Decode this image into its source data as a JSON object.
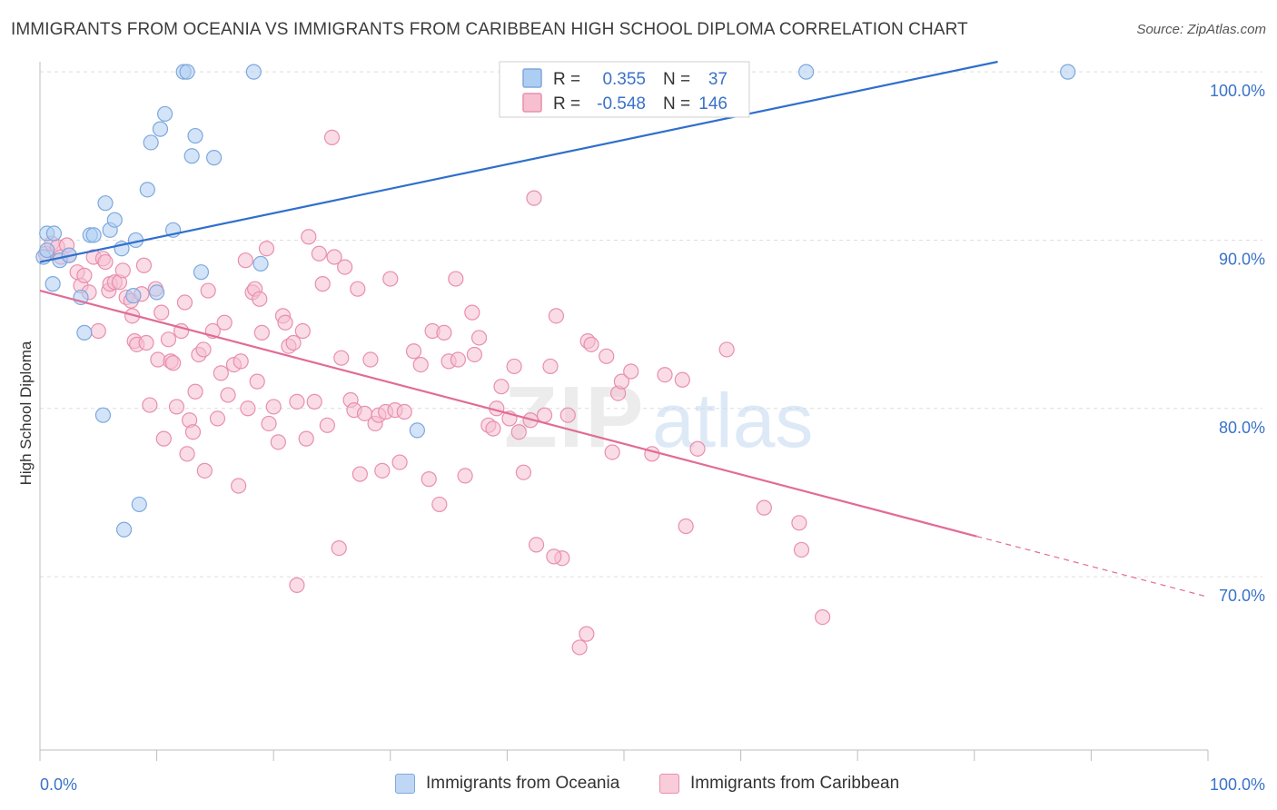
{
  "header": {
    "title": "IMMIGRANTS FROM OCEANIA VS IMMIGRANTS FROM CARIBBEAN HIGH SCHOOL DIPLOMA CORRELATION CHART",
    "source": "Source: ZipAtlas.com"
  },
  "watermark": {
    "part1": "ZIP",
    "part2": "atlas"
  },
  "colors": {
    "oceania_fill": "#aecdf3",
    "oceania_stroke": "#7ea8dd",
    "oceania_line": "#2f6fcc",
    "caribbean_fill": "#f6c0d1",
    "caribbean_stroke": "#e98fac",
    "caribbean_line": "#e26b97",
    "value_text": "#3a72c9",
    "grid": "#dedede"
  },
  "legend": {
    "rows": [
      {
        "r_label": "R =",
        "r_value": "0.355",
        "n_label": "N =",
        "n_value": "37"
      },
      {
        "r_label": "R =",
        "r_value": "-0.548",
        "n_label": "N =",
        "n_value": "146"
      }
    ]
  },
  "bottom_legend": {
    "oceania_label": "Immigrants from Oceania",
    "caribbean_label": "Immigrants from Caribbean"
  },
  "chart_data": {
    "type": "scatter",
    "title": "IMMIGRANTS FROM OCEANIA VS IMMIGRANTS FROM CARIBBEAN HIGH SCHOOL DIPLOMA CORRELATION CHART",
    "ylabel": "High School Diploma",
    "xlabel": "",
    "x_tick_labels": [
      "0.0%",
      "100.0%"
    ],
    "y_tick_labels": [
      "70.0%",
      "80.0%",
      "90.0%",
      "100.0%"
    ],
    "y_ticks": [
      70,
      80,
      90,
      100
    ],
    "xlim": [
      0,
      100
    ],
    "ylim": [
      59.7,
      100.6
    ],
    "grid": true,
    "legend_placement": "top-center",
    "series": [
      {
        "name": "Immigrants from Oceania",
        "r": 0.355,
        "n": 37,
        "trend": {
          "x": [
            0,
            82.0
          ],
          "y": [
            88.7,
            100.6
          ]
        },
        "points": [
          [
            0.3,
            89.0
          ],
          [
            0.6,
            90.4
          ],
          [
            1.1,
            87.4
          ],
          [
            1.2,
            90.4
          ],
          [
            1.7,
            88.8
          ],
          [
            2.5,
            89.1
          ],
          [
            3.5,
            86.6
          ],
          [
            3.8,
            84.5
          ],
          [
            4.3,
            90.3
          ],
          [
            4.6,
            90.3
          ],
          [
            5.4,
            79.6
          ],
          [
            5.6,
            92.2
          ],
          [
            6.0,
            90.6
          ],
          [
            6.4,
            91.2
          ],
          [
            7.0,
            89.5
          ],
          [
            7.2,
            72.8
          ],
          [
            8.0,
            86.7
          ],
          [
            8.2,
            90.0
          ],
          [
            8.5,
            74.3
          ],
          [
            9.2,
            93.0
          ],
          [
            9.5,
            95.8
          ],
          [
            10.0,
            86.9
          ],
          [
            10.3,
            96.6
          ],
          [
            10.7,
            97.5
          ],
          [
            11.4,
            90.6
          ],
          [
            12.3,
            100.0
          ],
          [
            12.6,
            100.0
          ],
          [
            13.0,
            95.0
          ],
          [
            13.3,
            96.2
          ],
          [
            13.8,
            88.1
          ],
          [
            14.9,
            94.9
          ],
          [
            18.3,
            100.0
          ],
          [
            18.9,
            88.6
          ],
          [
            32.3,
            78.7
          ],
          [
            65.6,
            100.0
          ],
          [
            88.0,
            100.0
          ],
          [
            0.6,
            89.4
          ]
        ]
      },
      {
        "name": "Immigrants from Caribbean",
        "r": -0.548,
        "n": 146,
        "trend": {
          "x": [
            0,
            80.2
          ],
          "y": [
            87.0,
            72.4
          ]
        },
        "trend_dashed": {
          "x": [
            80.2,
            100
          ],
          "y": [
            72.4,
            68.8
          ]
        },
        "points": [
          [
            0.5,
            89.2
          ],
          [
            1.0,
            89.8
          ],
          [
            1.5,
            89.6
          ],
          [
            1.8,
            89.0
          ],
          [
            2.3,
            89.7
          ],
          [
            2.5,
            89.1
          ],
          [
            3.2,
            88.1
          ],
          [
            3.5,
            87.3
          ],
          [
            3.8,
            87.9
          ],
          [
            4.2,
            86.9
          ],
          [
            4.6,
            89.0
          ],
          [
            5.0,
            84.6
          ],
          [
            5.4,
            88.9
          ],
          [
            5.6,
            88.7
          ],
          [
            5.9,
            87.0
          ],
          [
            6.0,
            87.4
          ],
          [
            6.4,
            87.5
          ],
          [
            6.8,
            87.5
          ],
          [
            7.1,
            88.2
          ],
          [
            7.4,
            86.6
          ],
          [
            7.8,
            86.4
          ],
          [
            7.9,
            85.5
          ],
          [
            8.1,
            84.0
          ],
          [
            8.3,
            83.8
          ],
          [
            8.7,
            86.8
          ],
          [
            8.9,
            88.5
          ],
          [
            9.1,
            83.9
          ],
          [
            9.4,
            80.2
          ],
          [
            9.9,
            87.1
          ],
          [
            10.1,
            82.9
          ],
          [
            10.4,
            85.7
          ],
          [
            10.6,
            78.2
          ],
          [
            11.0,
            84.1
          ],
          [
            11.2,
            82.8
          ],
          [
            11.4,
            82.7
          ],
          [
            11.7,
            80.1
          ],
          [
            12.1,
            84.6
          ],
          [
            12.4,
            86.3
          ],
          [
            12.6,
            77.3
          ],
          [
            12.8,
            79.3
          ],
          [
            13.1,
            78.6
          ],
          [
            13.3,
            81.0
          ],
          [
            13.6,
            83.2
          ],
          [
            14.0,
            83.5
          ],
          [
            14.1,
            76.3
          ],
          [
            14.4,
            87.0
          ],
          [
            14.8,
            84.6
          ],
          [
            15.2,
            79.4
          ],
          [
            15.5,
            82.1
          ],
          [
            15.8,
            85.1
          ],
          [
            16.1,
            80.8
          ],
          [
            16.6,
            82.6
          ],
          [
            17.0,
            75.4
          ],
          [
            17.2,
            82.8
          ],
          [
            17.6,
            88.8
          ],
          [
            17.8,
            80.0
          ],
          [
            18.2,
            86.9
          ],
          [
            18.4,
            87.1
          ],
          [
            18.6,
            81.6
          ],
          [
            18.8,
            86.5
          ],
          [
            19.0,
            84.5
          ],
          [
            19.4,
            89.5
          ],
          [
            19.6,
            79.1
          ],
          [
            20.0,
            80.1
          ],
          [
            20.4,
            78.0
          ],
          [
            20.8,
            85.5
          ],
          [
            21.0,
            85.1
          ],
          [
            21.3,
            83.7
          ],
          [
            21.7,
            83.9
          ],
          [
            22.0,
            80.4
          ],
          [
            22.5,
            84.6
          ],
          [
            22.8,
            78.2
          ],
          [
            23.0,
            90.2
          ],
          [
            23.5,
            80.4
          ],
          [
            23.9,
            89.2
          ],
          [
            24.2,
            87.4
          ],
          [
            24.6,
            79.0
          ],
          [
            25.2,
            89.0
          ],
          [
            25.6,
            71.7
          ],
          [
            25.8,
            83.0
          ],
          [
            26.1,
            88.4
          ],
          [
            26.6,
            80.5
          ],
          [
            26.9,
            79.9
          ],
          [
            27.2,
            87.1
          ],
          [
            27.4,
            76.1
          ],
          [
            27.8,
            79.7
          ],
          [
            28.3,
            82.9
          ],
          [
            28.7,
            79.1
          ],
          [
            29.0,
            79.6
          ],
          [
            29.3,
            76.3
          ],
          [
            29.6,
            79.8
          ],
          [
            30.0,
            87.7
          ],
          [
            30.4,
            79.9
          ],
          [
            30.8,
            76.8
          ],
          [
            31.2,
            79.8
          ],
          [
            32.0,
            83.4
          ],
          [
            32.6,
            82.6
          ],
          [
            33.3,
            75.8
          ],
          [
            33.6,
            84.6
          ],
          [
            34.2,
            74.3
          ],
          [
            34.6,
            84.5
          ],
          [
            35.0,
            82.8
          ],
          [
            35.6,
            87.7
          ],
          [
            35.8,
            82.9
          ],
          [
            36.4,
            76.0
          ],
          [
            37.0,
            85.7
          ],
          [
            37.2,
            83.2
          ],
          [
            37.6,
            84.2
          ],
          [
            38.4,
            79.0
          ],
          [
            38.8,
            78.8
          ],
          [
            39.1,
            80.0
          ],
          [
            39.5,
            81.3
          ],
          [
            40.2,
            79.4
          ],
          [
            40.6,
            82.5
          ],
          [
            41.0,
            78.6
          ],
          [
            41.4,
            76.2
          ],
          [
            42.0,
            79.3
          ],
          [
            42.3,
            92.5
          ],
          [
            42.5,
            71.9
          ],
          [
            43.2,
            79.6
          ],
          [
            43.7,
            82.5
          ],
          [
            44.2,
            85.5
          ],
          [
            44.7,
            71.1
          ],
          [
            45.2,
            79.6
          ],
          [
            46.2,
            65.8
          ],
          [
            46.8,
            66.6
          ],
          [
            46.9,
            84.0
          ],
          [
            47.2,
            83.8
          ],
          [
            48.5,
            83.1
          ],
          [
            49.0,
            77.4
          ],
          [
            49.5,
            80.9
          ],
          [
            49.8,
            81.6
          ],
          [
            50.6,
            82.2
          ],
          [
            52.4,
            77.3
          ],
          [
            53.5,
            82.0
          ],
          [
            55.0,
            81.7
          ],
          [
            55.3,
            73.0
          ],
          [
            56.3,
            77.6
          ],
          [
            58.8,
            83.5
          ],
          [
            62.0,
            74.1
          ],
          [
            65.0,
            73.2
          ],
          [
            65.2,
            71.6
          ],
          [
            67.0,
            67.6
          ],
          [
            25.0,
            96.1
          ],
          [
            22.0,
            69.5
          ],
          [
            44.0,
            71.2
          ]
        ]
      }
    ]
  }
}
